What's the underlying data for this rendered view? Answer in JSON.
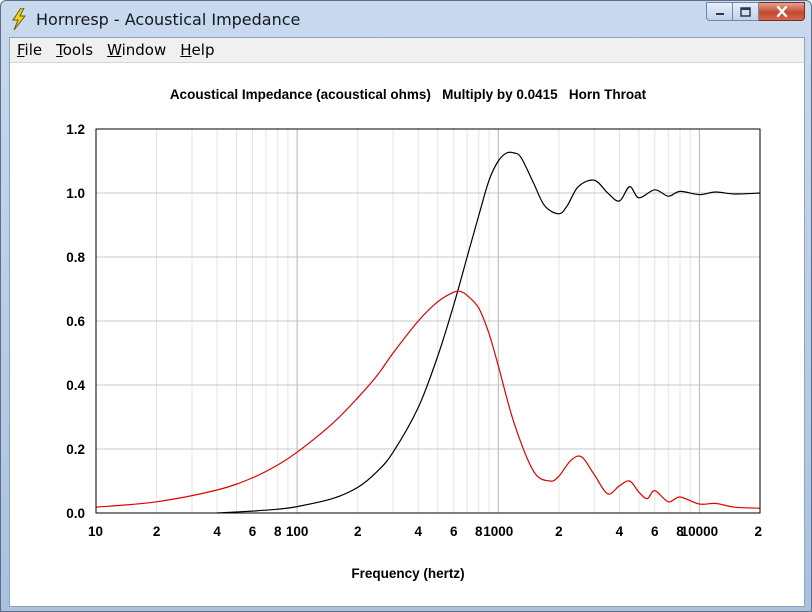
{
  "window": {
    "title": "Hornresp - Acoustical Impedance"
  },
  "menu": [
    {
      "label": "File",
      "accel": "F",
      "rest": "ile"
    },
    {
      "label": "Tools",
      "accel": "T",
      "rest": "ools"
    },
    {
      "label": "Window",
      "accel": "W",
      "rest": "indow"
    },
    {
      "label": "Help",
      "accel": "H",
      "rest": "elp"
    }
  ],
  "chart_data": {
    "type": "line",
    "title": "Acoustical Impedance (acoustical ohms)   Multiply by 0.0415   Horn Throat",
    "xlabel": "Frequency (hertz)",
    "ylabel": "",
    "xscale": "log",
    "xlim": [
      10,
      20000
    ],
    "ylim": [
      0,
      1.2
    ],
    "grid": true,
    "x_tick_labels": [
      {
        "v": 10,
        "t": "10"
      },
      {
        "v": 20,
        "t": "2"
      },
      {
        "v": 40,
        "t": "4"
      },
      {
        "v": 60,
        "t": "6"
      },
      {
        "v": 80,
        "t": "8"
      },
      {
        "v": 100,
        "t": "100"
      },
      {
        "v": 200,
        "t": "2"
      },
      {
        "v": 400,
        "t": "4"
      },
      {
        "v": 600,
        "t": "6"
      },
      {
        "v": 800,
        "t": "8"
      },
      {
        "v": 1000,
        "t": "1000"
      },
      {
        "v": 2000,
        "t": "2"
      },
      {
        "v": 4000,
        "t": "4"
      },
      {
        "v": 6000,
        "t": "6"
      },
      {
        "v": 8000,
        "t": "8"
      },
      {
        "v": 10000,
        "t": "10000"
      },
      {
        "v": 20000,
        "t": "2"
      }
    ],
    "y_tick_labels": [
      "0.0",
      "0.2",
      "0.4",
      "0.6",
      "0.8",
      "1.0",
      "1.2"
    ],
    "series": [
      {
        "color": "#000000",
        "x": [
          40,
          60,
          80,
          100,
          150,
          200,
          250,
          300,
          400,
          500,
          600,
          700,
          800,
          900,
          1000,
          1100,
          1200,
          1300,
          1500,
          1700,
          2000,
          2200,
          2500,
          3000,
          3500,
          4000,
          4500,
          5000,
          6000,
          7000,
          8000,
          10000,
          12000,
          15000,
          20000
        ],
        "y": [
          0.0,
          0.006,
          0.012,
          0.02,
          0.045,
          0.08,
          0.13,
          0.19,
          0.33,
          0.49,
          0.65,
          0.8,
          0.93,
          1.04,
          1.1,
          1.125,
          1.125,
          1.11,
          1.03,
          0.96,
          0.935,
          0.96,
          1.02,
          1.04,
          1.0,
          0.975,
          1.02,
          0.985,
          1.01,
          0.99,
          1.005,
          0.995,
          1.003,
          0.997,
          1.0
        ]
      },
      {
        "color": "#e00000",
        "x": [
          10,
          20,
          40,
          60,
          80,
          100,
          150,
          200,
          250,
          300,
          400,
          500,
          600,
          650,
          700,
          800,
          900,
          1000,
          1200,
          1500,
          1800,
          2000,
          2300,
          2600,
          3000,
          3500,
          4000,
          4500,
          5000,
          5500,
          6000,
          7000,
          8000,
          10000,
          12000,
          15000,
          20000
        ],
        "y": [
          0.018,
          0.035,
          0.072,
          0.11,
          0.15,
          0.19,
          0.28,
          0.36,
          0.43,
          0.5,
          0.6,
          0.66,
          0.69,
          0.692,
          0.68,
          0.64,
          0.56,
          0.46,
          0.28,
          0.13,
          0.1,
          0.115,
          0.165,
          0.175,
          0.12,
          0.06,
          0.085,
          0.1,
          0.065,
          0.045,
          0.07,
          0.035,
          0.05,
          0.028,
          0.03,
          0.018,
          0.015
        ]
      }
    ]
  }
}
